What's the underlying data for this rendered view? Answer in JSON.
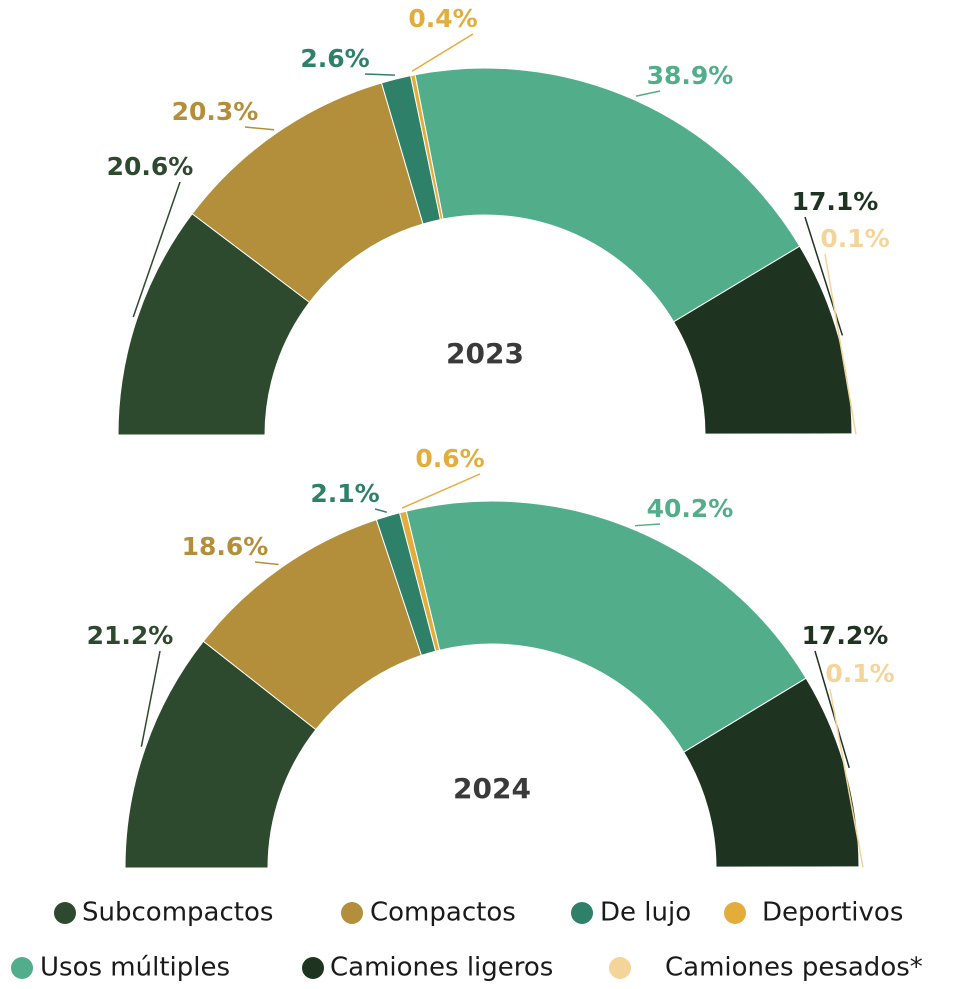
{
  "chart_data": {
    "type": "half-donut",
    "categories": [
      "Subcompactos",
      "Compactos",
      "De lujo",
      "Deportivos",
      "Usos múltiples",
      "Camiones ligeros",
      "Camiones pesados*"
    ],
    "colors": [
      "#2d4a2e",
      "#b38f3c",
      "#2e8068",
      "#e3ad3c",
      "#52ae8a",
      "#1e3320",
      "#f5d49a"
    ],
    "series": [
      {
        "name": "2023",
        "values": [
          20.6,
          20.3,
          2.6,
          0.4,
          38.9,
          17.1,
          0.1
        ],
        "value_labels": [
          "20.6%",
          "20.3%",
          "2.6%",
          "0.4%",
          "38.9%",
          "17.1%",
          "0.1%"
        ]
      },
      {
        "name": "2024",
        "values": [
          21.2,
          18.6,
          2.1,
          0.6,
          40.2,
          17.2,
          0.1
        ],
        "value_labels": [
          "21.2%",
          "18.6%",
          "2.1%",
          "0.6%",
          "40.2%",
          "17.2%",
          "0.1%"
        ]
      }
    ]
  }
}
